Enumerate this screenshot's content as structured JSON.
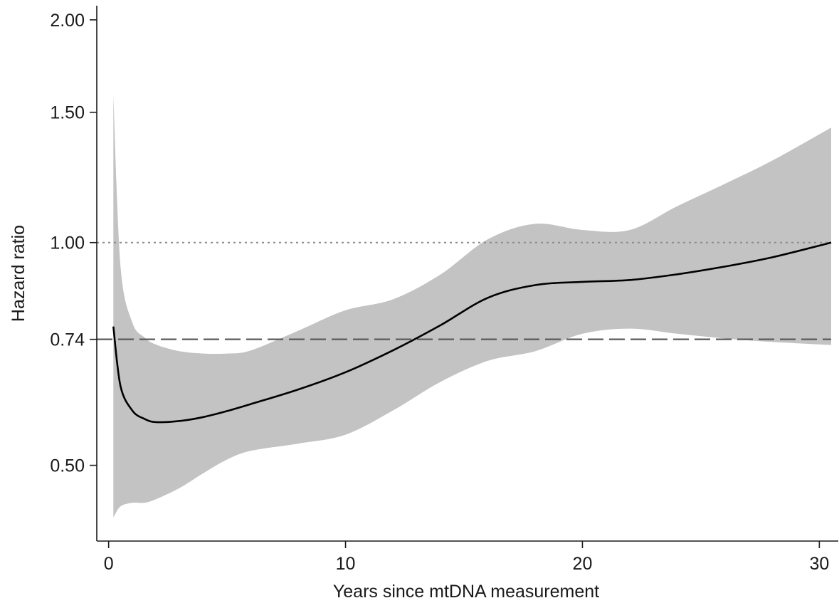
{
  "chart_data": {
    "type": "line",
    "title": "",
    "xlabel": "Years since mtDNA measurement",
    "ylabel": "Hazard ratio",
    "xlim": [
      -0.5,
      30.8
    ],
    "ylim": [
      0.395,
      2.09
    ],
    "y_scale": "log",
    "grid": false,
    "legend": "none",
    "x_ticks": [
      {
        "value": 0,
        "label": "0"
      },
      {
        "value": 10,
        "label": "10"
      },
      {
        "value": 20,
        "label": "20"
      },
      {
        "value": 30,
        "label": "30"
      }
    ],
    "y_ticks": [
      {
        "value": 0.5,
        "label": "0.50"
      },
      {
        "value": 0.74,
        "label": "0.74"
      },
      {
        "value": 1.0,
        "label": "1.00"
      },
      {
        "value": 1.5,
        "label": "1.50"
      },
      {
        "value": 2.0,
        "label": "2.00"
      }
    ],
    "reference_lines": [
      {
        "y": 1.0,
        "style": "dotted",
        "color": "#8c8c8c"
      },
      {
        "y": 0.74,
        "style": "dashed",
        "color": "#5a5a5a"
      }
    ],
    "series": [
      {
        "style": "line",
        "color": "#000000",
        "x": [
          0.2,
          0.5,
          1.0,
          1.5,
          2.0,
          3.0,
          4.0,
          5.0,
          6.0,
          8.0,
          10.0,
          12.0,
          14.0,
          16.0,
          18.0,
          20.0,
          22.0,
          24.0,
          26.0,
          28.0,
          30.5
        ],
        "y": [
          0.77,
          0.64,
          0.593,
          0.578,
          0.572,
          0.574,
          0.581,
          0.592,
          0.605,
          0.633,
          0.668,
          0.715,
          0.773,
          0.842,
          0.876,
          0.885,
          0.89,
          0.906,
          0.928,
          0.955,
          1.0
        ]
      },
      {
        "style": "band",
        "color": "#c3c3c3",
        "x": [
          0.2,
          0.5,
          1.0,
          1.5,
          2.0,
          3.0,
          4.0,
          5.0,
          6.0,
          8.0,
          10.0,
          12.0,
          14.0,
          16.0,
          18.0,
          20.0,
          22.0,
          24.0,
          26.0,
          28.0,
          30.5
        ],
        "upper": [
          1.58,
          0.93,
          0.78,
          0.745,
          0.728,
          0.713,
          0.708,
          0.708,
          0.715,
          0.76,
          0.81,
          0.838,
          0.905,
          1.01,
          1.06,
          1.04,
          1.04,
          1.12,
          1.2,
          1.29,
          1.43
        ],
        "lower": [
          0.425,
          0.44,
          0.445,
          0.445,
          0.45,
          0.466,
          0.488,
          0.509,
          0.523,
          0.535,
          0.55,
          0.593,
          0.648,
          0.692,
          0.713,
          0.753,
          0.765,
          0.753,
          0.742,
          0.734,
          0.727
        ]
      }
    ]
  }
}
